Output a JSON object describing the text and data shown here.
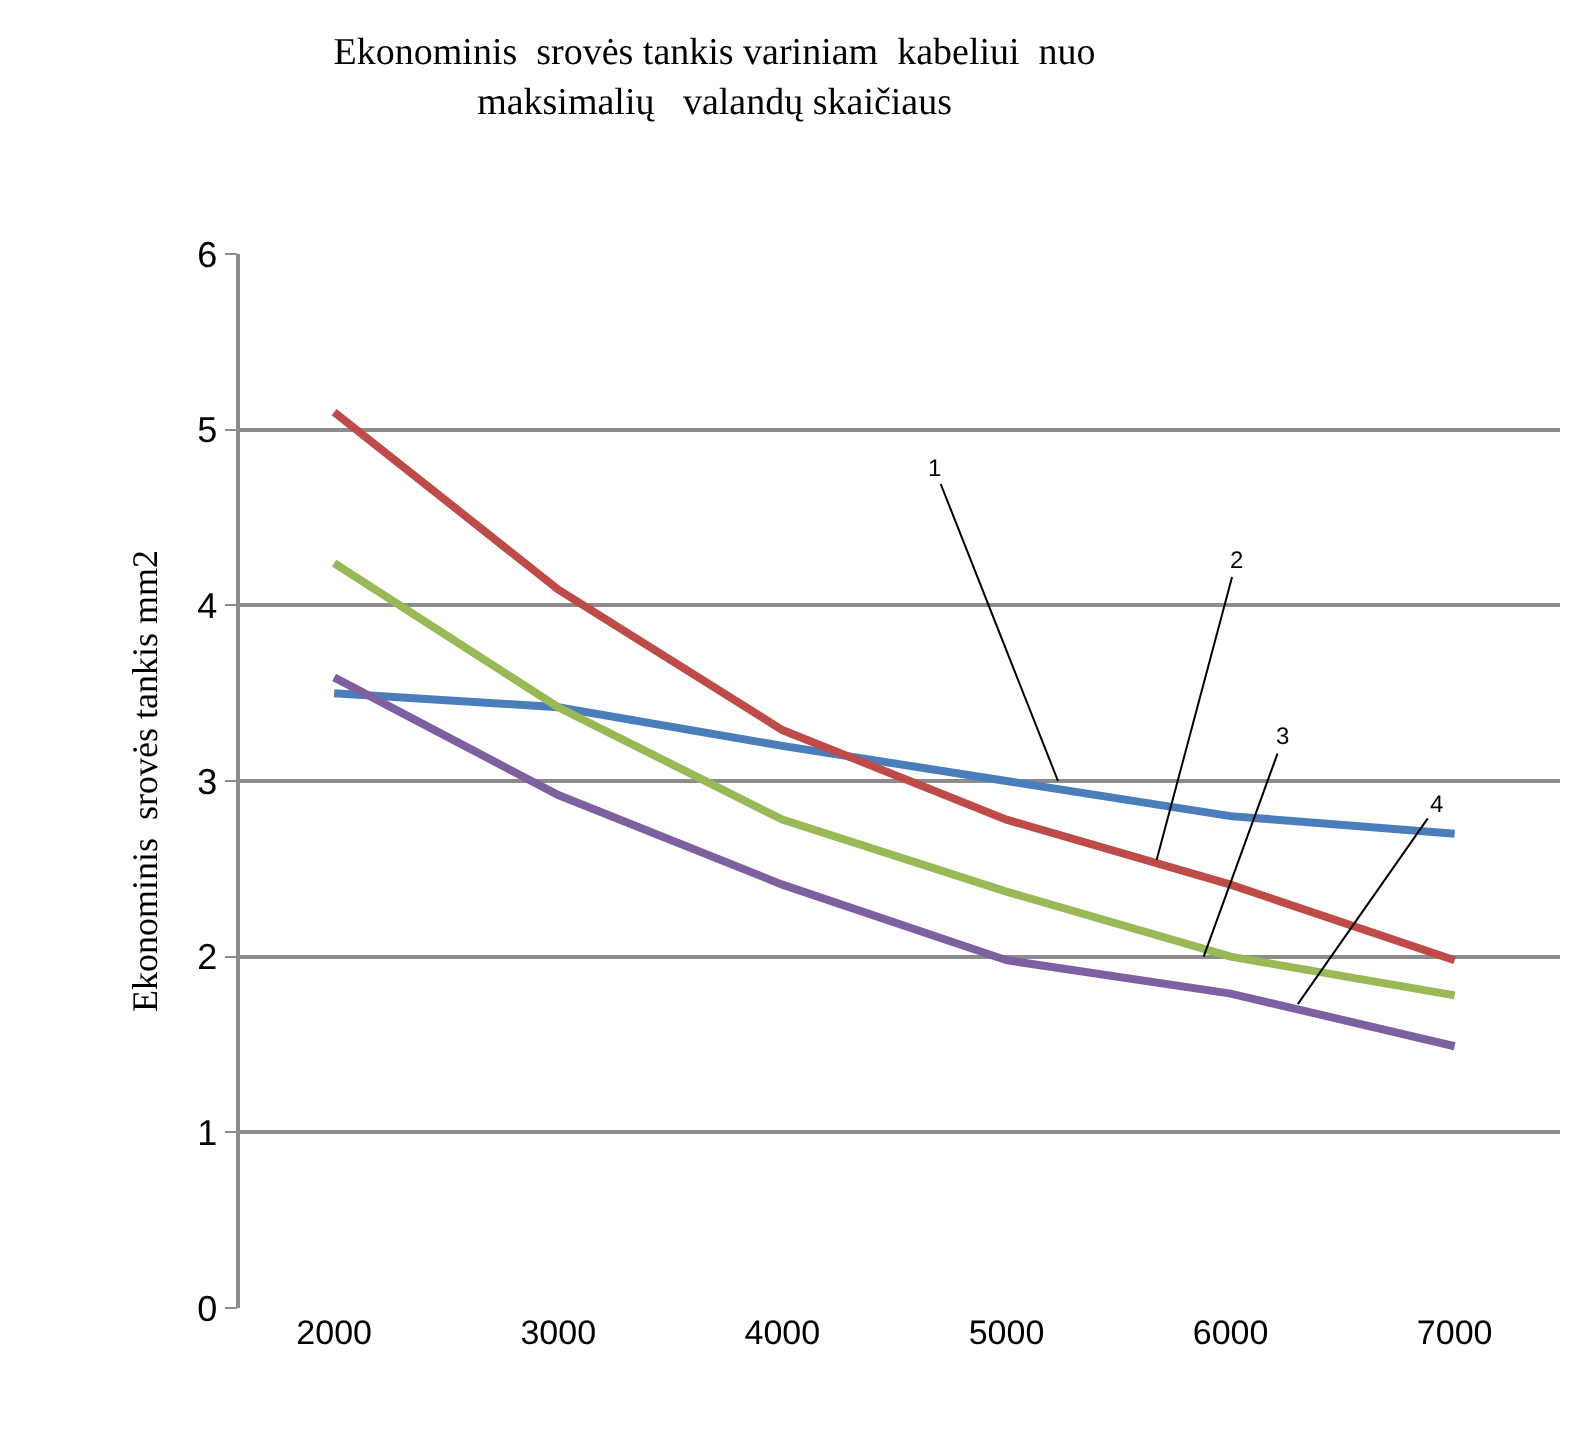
{
  "chart_data": {
    "type": "line",
    "title": "Ekonominis  srovės tankis variniam  kabeliui  nuo\nmaksimalių   valandų skaičiaus",
    "ylabel": "Ekonominis  srovės tankis mm2",
    "x": [
      2000,
      3000,
      4000,
      5000,
      6000,
      7000
    ],
    "series": [
      {
        "color": "#4a7ebb",
        "values": [
          3.5,
          3.42,
          3.2,
          3.0,
          2.8,
          2.7
        ]
      },
      {
        "color": "#be4b48",
        "values": [
          5.1,
          4.09,
          3.29,
          2.78,
          2.41,
          1.98
        ]
      },
      {
        "color": "#98b954",
        "values": [
          4.24,
          3.42,
          2.78,
          2.37,
          2.0,
          1.78
        ]
      },
      {
        "color": "#7d60a0",
        "values": [
          3.59,
          2.92,
          2.41,
          1.98,
          1.79,
          1.49
        ]
      }
    ],
    "annotations": [
      {
        "text": "1",
        "x": 5230,
        "y": 3.0
      },
      {
        "text": "2",
        "x": 5670,
        "y": 2.55
      },
      {
        "text": "3",
        "x": 5880,
        "y": 2.0
      },
      {
        "text": "4",
        "x": 6300,
        "y": 1.73
      }
    ],
    "xlim": [
      1580,
      7470
    ],
    "xticks": [
      2000,
      3000,
      4000,
      5000,
      6000,
      7000
    ],
    "ylim": [
      0,
      6
    ],
    "yticks": [
      0,
      1,
      2,
      3,
      4,
      5,
      6
    ],
    "grid": "y",
    "legend": false,
    "marker": "none",
    "line_style": "solid"
  }
}
